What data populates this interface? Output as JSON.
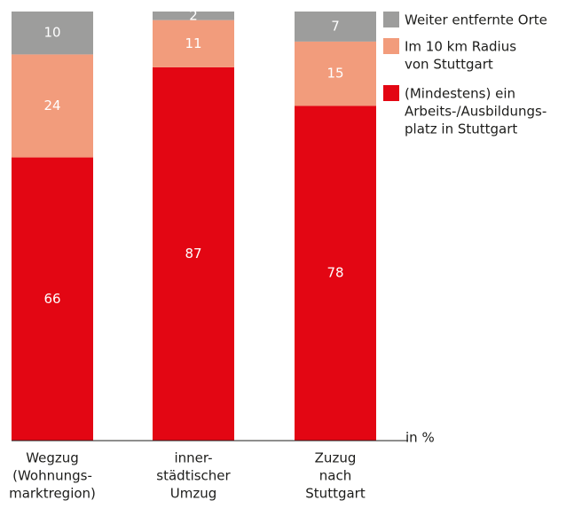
{
  "chart_data": {
    "type": "stacked_bar",
    "categories": [
      [
        "Wegzug",
        "(Wohnungs-",
        "marktregion)"
      ],
      [
        "inner-",
        "städtischer",
        "Umzug"
      ],
      [
        "Zuzug",
        "nach",
        "Stuttgart"
      ]
    ],
    "series": [
      {
        "name": [
          "(Mindestens) ein",
          "Arbeits-/Ausbildungs-",
          "platz in Stuttgart"
        ],
        "color": "#e30613",
        "values": [
          66,
          87,
          78
        ]
      },
      {
        "name": [
          "Im 10 km Radius",
          "von Stuttgart"
        ],
        "color": "#f29c7c",
        "values": [
          24,
          11,
          15
        ]
      },
      {
        "name": [
          "Weiter entfernte Orte"
        ],
        "color": "#9d9d9c",
        "values": [
          10,
          2,
          7
        ]
      }
    ],
    "ylim": [
      0,
      100
    ],
    "unit_label": "in %"
  }
}
